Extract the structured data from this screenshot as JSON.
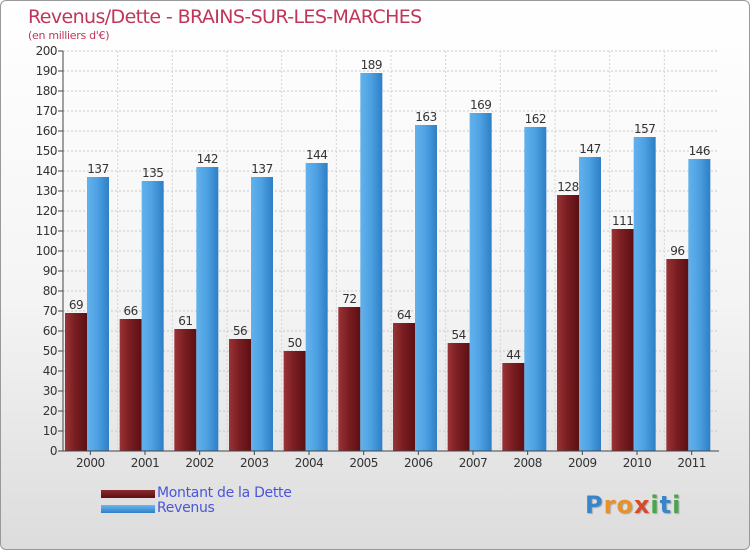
{
  "title": "Revenus/Dette - BRAINS-SUR-LES-MARCHES",
  "subtitle": "(en milliers d'€)",
  "logo": "Proxiti",
  "colors": {
    "title": "#c0365b",
    "dette": "#7a1e22",
    "revenus": "#4fa3e3",
    "legend_text": "#4a56d8"
  },
  "legend": {
    "dette_label": "Montant de la Dette",
    "revenus_label": "Revenus"
  },
  "chart_data": {
    "type": "bar",
    "title": "Revenus/Dette - BRAINS-SUR-LES-MARCHES",
    "ylabel": "",
    "xlabel": "",
    "ylim": [
      0,
      200
    ],
    "ytick_step": 10,
    "grid": true,
    "legend_position": "bottom-left",
    "categories": [
      "2000",
      "2001",
      "2002",
      "2003",
      "2004",
      "2005",
      "2006",
      "2007",
      "2008",
      "2009",
      "2010",
      "2011"
    ],
    "series": [
      {
        "name": "Montant de la Dette",
        "values": [
          69,
          66,
          61,
          56,
          50,
          72,
          64,
          54,
          44,
          128,
          111,
          96
        ]
      },
      {
        "name": "Revenus",
        "values": [
          137,
          135,
          142,
          137,
          144,
          189,
          163,
          169,
          162,
          147,
          157,
          146
        ]
      }
    ]
  }
}
